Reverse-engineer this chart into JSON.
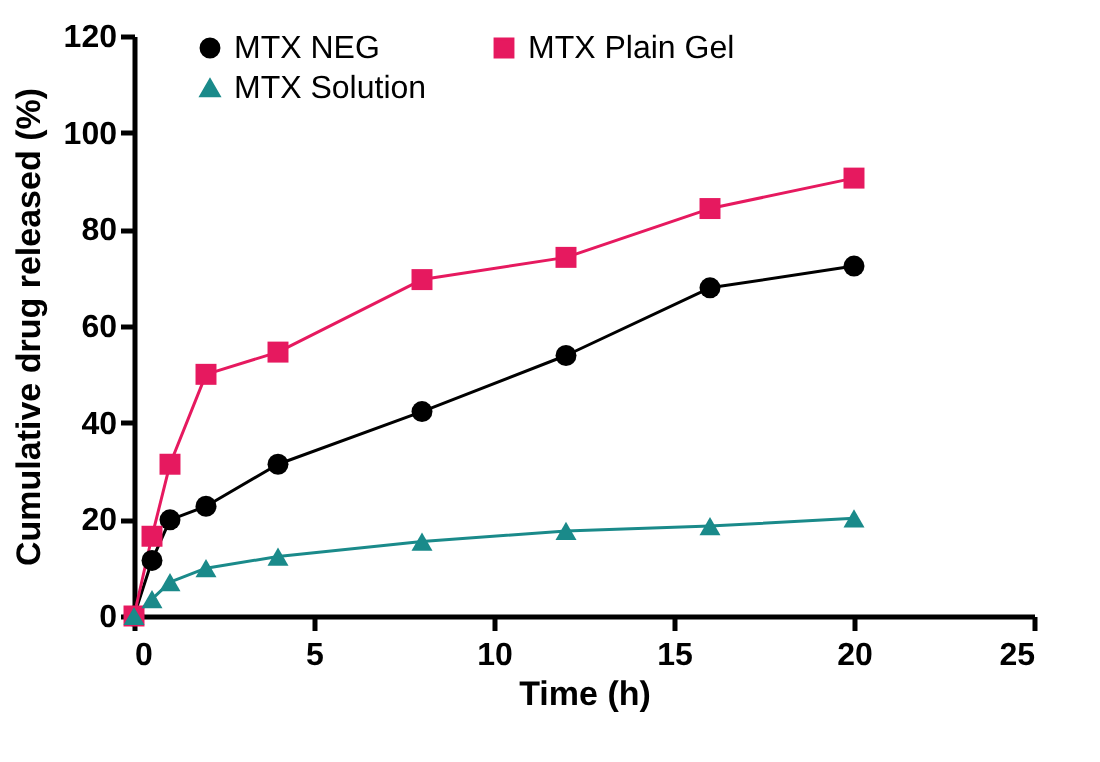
{
  "chart_data": {
    "type": "line",
    "xlabel": "Time (h)",
    "ylabel": "Cumulative drug released (%)",
    "x": [
      0,
      0.5,
      1,
      2,
      4,
      8,
      12,
      16,
      20
    ],
    "series": [
      {
        "name": "MTX NEG",
        "color": "#000000",
        "marker": "circle",
        "values": [
          0,
          11.5,
          19.9,
          22.7,
          31.4,
          42.3,
          53.9,
          67.9,
          72.4
        ]
      },
      {
        "name": "MTX Plain Gel",
        "color": "#e6195f",
        "marker": "square",
        "values": [
          0,
          16.5,
          31.4,
          50,
          54.6,
          69.6,
          74.2,
          84.3,
          90.6
        ]
      },
      {
        "name": "MTX Solution",
        "color": "#1a8a8a",
        "marker": "triangle",
        "values": [
          0,
          3.5,
          7,
          9.9,
          12.3,
          15.4,
          17.6,
          18.6,
          20.2
        ]
      }
    ],
    "xlim": [
      0,
      25
    ],
    "xticks": [
      0,
      5,
      10,
      15,
      20,
      25
    ],
    "ylim": [
      0,
      120
    ],
    "yticks": [
      0,
      20,
      40,
      60,
      80,
      100,
      120
    ],
    "grid": false,
    "legend": "top"
  }
}
